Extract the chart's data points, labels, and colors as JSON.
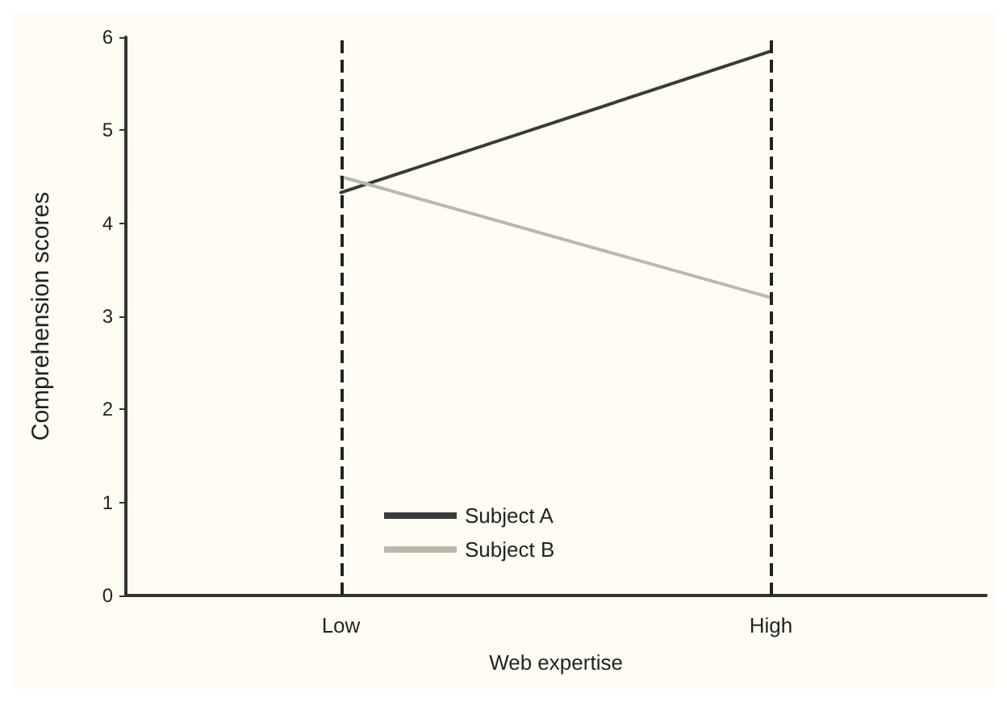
{
  "chart_data": {
    "type": "line",
    "xlabel": "Web expertise",
    "ylabel": "Comprehension scores",
    "categories": [
      "Low",
      "High"
    ],
    "series": [
      {
        "name": "Subject A",
        "color": "#3a3a3a",
        "values": [
          4.33,
          5.85
        ]
      },
      {
        "name": "Subject B",
        "color": "#b9b9a8",
        "values": [
          4.5,
          3.2
        ]
      }
    ],
    "ylim": [
      0,
      6
    ],
    "yticks": [
      0,
      1,
      2,
      3,
      4,
      5,
      6
    ],
    "grid": false,
    "legend": "bottom left",
    "marker": "none",
    "line_style": "solid",
    "ref_lines": [
      {
        "axis": "x",
        "value": "Low",
        "line_style": "dashed",
        "color": "#222222"
      },
      {
        "axis": "x",
        "value": "High",
        "line_style": "dashed",
        "color": "#222222"
      }
    ]
  }
}
